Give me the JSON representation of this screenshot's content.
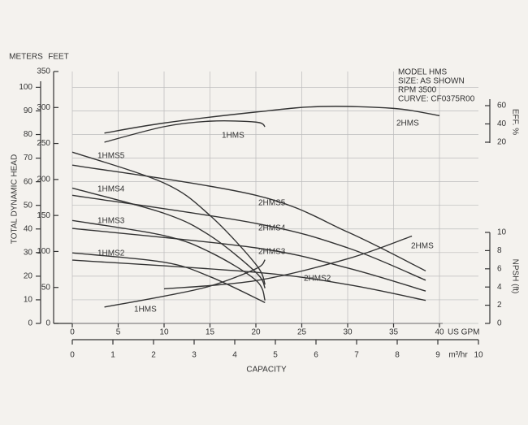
{
  "chart_data": {
    "type": "line",
    "head_axis_meters": {
      "title": "METERS",
      "ylim": [
        0,
        106.68
      ],
      "yticks": [
        0,
        10,
        20,
        30,
        40,
        50,
        60,
        70,
        80,
        90,
        100
      ]
    },
    "head_axis_feet": {
      "title": "FEET",
      "ylim": [
        0,
        350
      ],
      "yticks": [
        0,
        50,
        100,
        150,
        200,
        250,
        300,
        350
      ]
    },
    "y_title": "TOTAL DYNAMIC HEAD",
    "x_title": "CAPACITY",
    "gpm_axis": {
      "unit": "US GPM",
      "xlim": [
        0,
        40
      ],
      "xticks": [
        0,
        5,
        10,
        15,
        20,
        25,
        30,
        35,
        40
      ]
    },
    "m3hr_axis": {
      "unit": "m³/hr",
      "xlim": [
        0,
        10
      ],
      "xticks": [
        0,
        1,
        2,
        3,
        4,
        5,
        6,
        7,
        8,
        9,
        10
      ]
    },
    "eff_axis": {
      "title": "EFF. %",
      "ylim": [
        20,
        60
      ],
      "yticks": [
        20,
        40,
        60
      ]
    },
    "npsh_axis": {
      "title": "NPSH (ft)",
      "ylim": [
        0,
        10
      ],
      "yticks": [
        0,
        2,
        4,
        6,
        8,
        10
      ]
    },
    "info": [
      "MODEL HMS",
      "SIZE: AS SHOWN",
      "RPM 3500",
      "CURVE: CF0375R00"
    ],
    "grid": true,
    "series": [
      {
        "name": "1HMS5",
        "axis": "head",
        "color": "#333",
        "x": [
          0,
          10,
          15,
          20,
          21
        ],
        "values": [
          238,
          195,
          150,
          82,
          54
        ]
      },
      {
        "name": "1HMS4",
        "axis": "head",
        "color": "#333",
        "x": [
          0,
          10,
          15,
          20,
          21
        ],
        "values": [
          188,
          153,
          122,
          71,
          49
        ]
      },
      {
        "name": "1HMS3",
        "axis": "head",
        "color": "#333",
        "x": [
          0,
          10,
          15,
          20,
          21
        ],
        "values": [
          143,
          122,
          99,
          60,
          32
        ]
      },
      {
        "name": "1HMS2",
        "axis": "head",
        "color": "#333",
        "x": [
          0,
          10,
          15,
          21
        ],
        "values": [
          98,
          85,
          65,
          29
        ]
      },
      {
        "name": "2HMS5",
        "axis": "head",
        "color": "#333",
        "x": [
          0,
          20,
          30,
          38.5
        ],
        "values": [
          220,
          178,
          127,
          73
        ]
      },
      {
        "name": "2HMS4",
        "axis": "head",
        "color": "#333",
        "x": [
          0,
          20,
          30,
          38.5
        ],
        "values": [
          178,
          139,
          105,
          60
        ]
      },
      {
        "name": "2HMS3",
        "axis": "head",
        "color": "#333",
        "x": [
          0,
          20,
          30,
          38.5
        ],
        "values": [
          132,
          105,
          77,
          45
        ]
      },
      {
        "name": "2HMS2",
        "axis": "head",
        "color": "#333",
        "x": [
          0,
          20,
          30,
          38.5
        ],
        "values": [
          88,
          71,
          54,
          32
        ]
      },
      {
        "name": "1HMS",
        "axis": "eff",
        "color": "#333",
        "x": [
          3.5,
          10,
          15,
          20,
          21
        ],
        "values": [
          20,
          37,
          43,
          42,
          37
        ]
      },
      {
        "name": "2HMS",
        "axis": "eff",
        "color": "#333",
        "x": [
          3.5,
          10,
          20,
          27,
          35,
          40
        ],
        "values": [
          30,
          41,
          53,
          59,
          57,
          49
        ]
      },
      {
        "name": "1HMS",
        "axis": "npsh",
        "color": "#333",
        "x": [
          3.5,
          10,
          15,
          20,
          21
        ],
        "values": [
          1.8,
          3,
          4.1,
          6,
          7
        ]
      },
      {
        "name": "2HMS",
        "axis": "npsh",
        "color": "#333",
        "x": [
          10,
          20,
          30,
          37
        ],
        "values": [
          3.8,
          4.7,
          7.1,
          9.6
        ]
      }
    ]
  }
}
